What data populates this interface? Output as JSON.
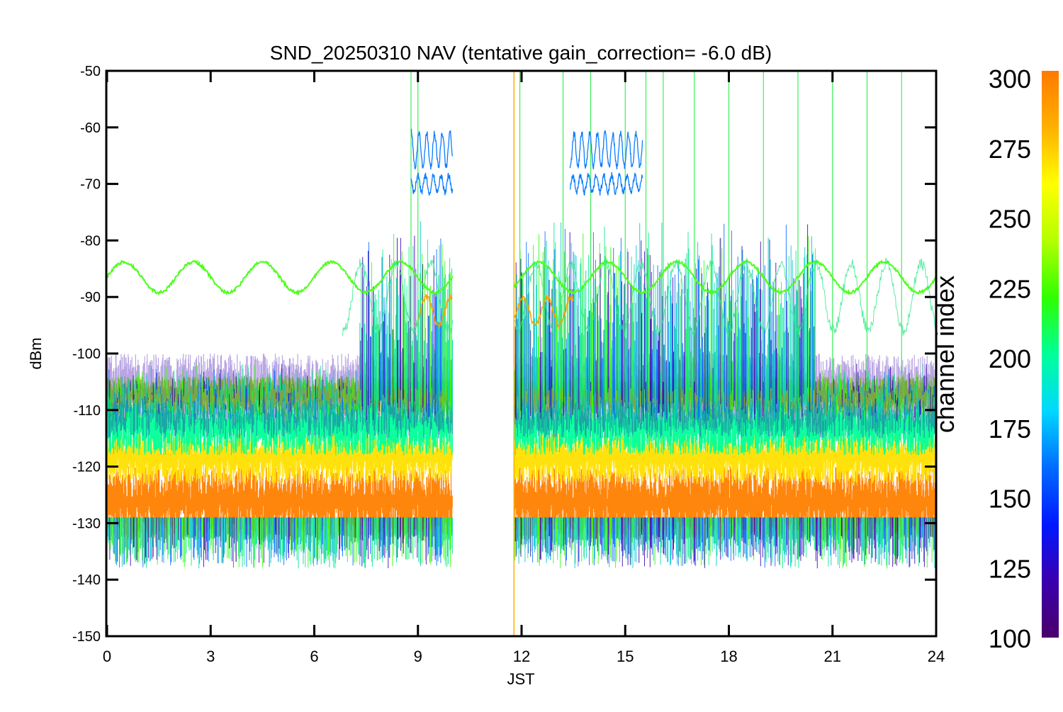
{
  "chart_data": {
    "type": "line",
    "title": "SND_20250310 NAV (tentative gain_correction= -6.0 dB)",
    "xlabel": "JST",
    "ylabel": "dBm",
    "xlim": [
      0,
      24
    ],
    "ylim": [
      -150,
      -50
    ],
    "x_ticks": [
      "0",
      "3",
      "6",
      "9",
      "12",
      "15",
      "18",
      "21",
      "24"
    ],
    "y_ticks": [
      "-50",
      "-60",
      "-70",
      "-80",
      "-90",
      "-100",
      "-110",
      "-120",
      "-130",
      "-140",
      "-150"
    ],
    "grid": false,
    "data_gap_jst": [
      10.0,
      11.8
    ],
    "colorbar": {
      "label": "channel index",
      "range": [
        100,
        300
      ],
      "ticks": [
        "300",
        "275",
        "250",
        "225",
        "200",
        "175",
        "150",
        "125",
        "100"
      ],
      "colormap": "rainbow",
      "stops": [
        "#4b0069",
        "#3a00b0",
        "#0018ff",
        "#006cff",
        "#00d8ff",
        "#00ff9a",
        "#2eff00",
        "#b4ff00",
        "#ffff00",
        "#ffb000",
        "#ff7a00"
      ]
    },
    "series": [
      {
        "color": "#ff8000",
        "band_dbm": [
          -133,
          -120
        ],
        "note_dbm_center": -125.5
      },
      {
        "color": "#ffe000",
        "band_dbm": [
          -123,
          -114
        ]
      },
      {
        "color": "#9bff00",
        "band_dbm": [
          -111,
          -104
        ]
      },
      {
        "color": "#00ff9a",
        "band_dbm": [
          -118,
          -108
        ]
      },
      {
        "color": "#4cff1a",
        "sine_mean_dbm": -86.5,
        "sine_amp_db": 2.7,
        "period_h": 2.0
      },
      {
        "color": "#0a7cff",
        "high_level_dbm": [
          -72,
          -60
        ],
        "active_jst": [
          [
            8.8,
            10.0
          ],
          [
            13.4,
            15.5
          ]
        ]
      },
      {
        "color": "#ffa000",
        "level_dbm": [
          -95,
          -90
        ],
        "active_jst": [
          [
            8.9,
            10.0
          ],
          [
            11.8,
            13.5
          ]
        ]
      },
      {
        "color": "#3a00b0",
        "band_dbm": [
          -115,
          -100
        ]
      }
    ]
  }
}
